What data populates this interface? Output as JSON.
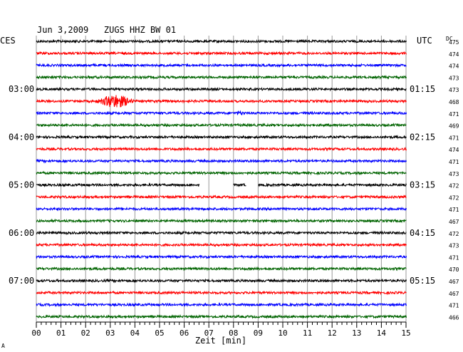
{
  "chart_data": {
    "type": "line",
    "title": "Jun 3,2009   ZUGS HHZ BW 01",
    "left_zone_label": "CES",
    "right_zone_label": "UTC",
    "dc_label": "DC",
    "xlabel": "Zeit [min]",
    "xlim": [
      0,
      15
    ],
    "x_ticks": [
      "00",
      "01",
      "02",
      "03",
      "04",
      "05",
      "06",
      "07",
      "08",
      "09",
      "10",
      "11",
      "12",
      "13",
      "14",
      "15"
    ],
    "left_time_labels": [
      "03:00",
      "04:00",
      "05:00",
      "06:00",
      "07:00"
    ],
    "right_time_labels": [
      "01:15",
      "02:15",
      "03:15",
      "04:15",
      "05:15"
    ],
    "row_colors": [
      "#000000",
      "#ff0000",
      "#0000ff",
      "#006400"
    ],
    "dc_offsets": [
      475,
      474,
      474,
      473,
      473,
      468,
      471,
      469,
      471,
      474,
      471,
      473,
      472,
      472,
      471,
      467,
      472,
      473,
      471,
      470,
      467,
      467,
      471,
      466
    ],
    "events": [
      {
        "row": 5,
        "start_min": 2.4,
        "end_min": 4.5,
        "peak_min": 3.2,
        "peak_amplitude": 10,
        "description_row_color": "red"
      },
      {
        "row": 6,
        "start_min": 7.9,
        "end_min": 8.8,
        "peak_min": 8.25,
        "peak_amplitude": 3
      }
    ],
    "gaps": [
      {
        "row": 12,
        "start_min": 6.6,
        "end_min": 8.0
      },
      {
        "row": 12,
        "start_min": 8.5,
        "end_min": 9.0
      }
    ],
    "grid": true,
    "bottom_left_mark": "A"
  }
}
